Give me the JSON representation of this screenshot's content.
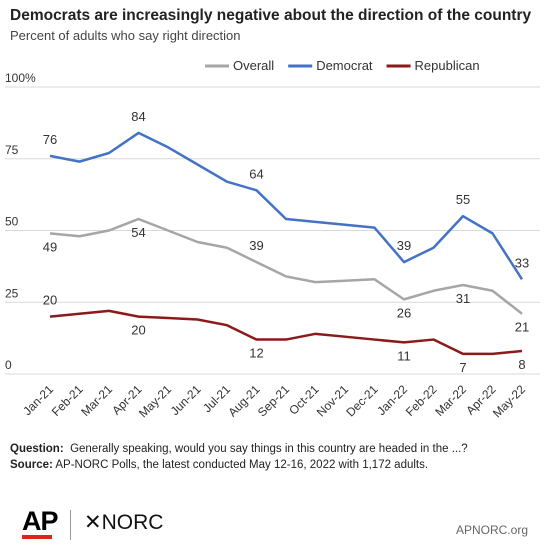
{
  "chart_data": {
    "type": "line",
    "title": "Democrats are increasingly negative about the direction of the country",
    "subtitle": "Percent of adults who say right direction",
    "categories": [
      "Jan-21",
      "Feb-21",
      "Mar-21",
      "Apr-21",
      "May-21",
      "Jun-21",
      "Jul-21",
      "Aug-21",
      "Sep-21",
      "Oct-21",
      "Nov-21",
      "Dec-21",
      "Jan-22",
      "Feb-22",
      "Mar-22",
      "Apr-22",
      "May-22"
    ],
    "series": [
      {
        "name": "Overall",
        "color": "#a6a6a6",
        "values": [
          49,
          48,
          50,
          54,
          50,
          46,
          44,
          39,
          34,
          32,
          32.5,
          33,
          26,
          29,
          31,
          29,
          21
        ],
        "value_labels": [
          "49",
          null,
          null,
          "54",
          null,
          null,
          null,
          "39",
          null,
          null,
          null,
          null,
          "26",
          null,
          "31",
          null,
          "21"
        ]
      },
      {
        "name": "Democrat",
        "color": "#4472c4",
        "values": [
          76,
          74,
          77,
          84,
          79,
          73,
          67,
          64,
          54,
          53,
          52,
          51,
          39,
          44,
          55,
          49,
          33
        ],
        "value_labels": [
          "76",
          null,
          null,
          "84",
          null,
          null,
          null,
          "64",
          null,
          null,
          null,
          null,
          "39",
          null,
          "55",
          null,
          "33"
        ]
      },
      {
        "name": "Republican",
        "color": "#8b1a1a",
        "values": [
          20,
          21,
          22,
          20,
          19.5,
          19,
          17,
          12,
          12,
          14,
          13,
          12,
          11,
          12,
          7,
          7,
          8
        ],
        "value_labels": [
          "20",
          null,
          null,
          "20",
          null,
          null,
          null,
          "12",
          null,
          null,
          null,
          null,
          "11",
          null,
          "7",
          null,
          "8"
        ]
      }
    ],
    "ylim": [
      0,
      100
    ],
    "yticks": [
      0,
      25,
      50,
      75,
      {
        "value": 100,
        "label": "100%"
      }
    ],
    "grid": true
  },
  "footer": {
    "question_label": "Question:",
    "question": "Generally speaking, would you say things in this country are headed in the ...?",
    "source_label": "Source:",
    "source": "AP-NORC Polls, the latest conducted May 12-16, 2022 with 1,172 adults.",
    "logo_ap": "AP",
    "logo_norc": "NORC",
    "site": "APNORC.org"
  }
}
